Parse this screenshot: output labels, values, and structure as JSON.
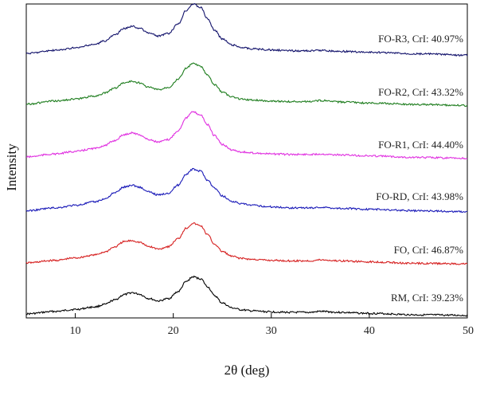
{
  "chart_data": {
    "type": "line",
    "xlabel": "2θ (deg)",
    "ylabel": "Intensity",
    "xlim": [
      5,
      50
    ],
    "xticks": [
      10,
      20,
      30,
      40,
      50
    ],
    "y_tick_labels": false,
    "series": [
      {
        "name": "RM, CrI: 39.23%",
        "color": "#000000",
        "x": [
          5,
          8,
          10,
          12,
          13,
          14,
          15,
          15.8,
          16.5,
          17.5,
          18.5,
          19.5,
          20.5,
          21.3,
          22,
          22.8,
          23.5,
          24.2,
          25,
          26,
          27,
          28,
          30,
          32,
          34,
          35,
          37,
          40,
          45,
          50
        ],
        "y": [
          0.05,
          0.1,
          0.14,
          0.19,
          0.24,
          0.33,
          0.44,
          0.48,
          0.45,
          0.36,
          0.31,
          0.36,
          0.5,
          0.7,
          0.8,
          0.76,
          0.6,
          0.42,
          0.27,
          0.17,
          0.13,
          0.11,
          0.09,
          0.08,
          0.08,
          0.1,
          0.08,
          0.06,
          0.03,
          0.02
        ]
      },
      {
        "name": "FO, CrI: 46.87%",
        "color": "#d62020",
        "x": [
          5,
          8,
          10,
          12,
          13,
          14,
          15,
          15.8,
          16.5,
          17.5,
          18.5,
          19.5,
          20.5,
          21.3,
          22,
          22.8,
          23.5,
          24.2,
          25,
          26,
          27,
          28,
          30,
          32,
          34,
          35,
          37,
          40,
          45,
          50
        ],
        "y": [
          0.05,
          0.1,
          0.15,
          0.21,
          0.27,
          0.37,
          0.48,
          0.5,
          0.47,
          0.38,
          0.33,
          0.38,
          0.54,
          0.75,
          0.85,
          0.8,
          0.62,
          0.43,
          0.28,
          0.18,
          0.14,
          0.12,
          0.1,
          0.09,
          0.09,
          0.11,
          0.09,
          0.07,
          0.04,
          0.03
        ]
      },
      {
        "name": "FO-RD, CrI: 43.98%",
        "color": "#1a1ab8",
        "x": [
          5,
          8,
          10,
          12,
          13,
          14,
          15,
          15.8,
          16.5,
          17.5,
          18.5,
          19.5,
          20.5,
          21.3,
          22,
          22.8,
          23.5,
          24.2,
          25,
          26,
          27,
          28,
          30,
          32,
          34,
          35,
          37,
          40,
          45,
          50
        ],
        "y": [
          0.04,
          0.1,
          0.15,
          0.22,
          0.28,
          0.4,
          0.52,
          0.56,
          0.52,
          0.42,
          0.36,
          0.4,
          0.56,
          0.78,
          0.88,
          0.84,
          0.66,
          0.5,
          0.34,
          0.23,
          0.18,
          0.15,
          0.12,
          0.1,
          0.1,
          0.11,
          0.09,
          0.07,
          0.04,
          0.02
        ]
      },
      {
        "name": "FO-R1, CrI: 44.40%",
        "color": "#e02fe0",
        "x": [
          5,
          8,
          10,
          12,
          13,
          14,
          15,
          15.8,
          16.5,
          17.5,
          18.5,
          19.5,
          20.5,
          21.3,
          22,
          22.8,
          23.5,
          24.2,
          25,
          26,
          27,
          28,
          30,
          32,
          34,
          35,
          37,
          40,
          45,
          50
        ],
        "y": [
          0.05,
          0.11,
          0.16,
          0.22,
          0.28,
          0.38,
          0.5,
          0.54,
          0.5,
          0.4,
          0.35,
          0.4,
          0.58,
          0.84,
          0.96,
          0.9,
          0.7,
          0.48,
          0.3,
          0.19,
          0.15,
          0.13,
          0.11,
          0.1,
          0.1,
          0.11,
          0.09,
          0.07,
          0.04,
          0.02
        ]
      },
      {
        "name": "FO-R2, CrI: 43.32%",
        "color": "#1e7d1e",
        "x": [
          5,
          8,
          10,
          12,
          13,
          14,
          15,
          15.8,
          16.5,
          17.5,
          18.5,
          19.5,
          20.5,
          21.3,
          22,
          22.8,
          23.5,
          24.2,
          25,
          26,
          27,
          28,
          30,
          32,
          34,
          35,
          37,
          40,
          45,
          50
        ],
        "y": [
          0.04,
          0.1,
          0.14,
          0.2,
          0.26,
          0.36,
          0.47,
          0.5,
          0.47,
          0.38,
          0.33,
          0.38,
          0.54,
          0.76,
          0.86,
          0.8,
          0.62,
          0.43,
          0.28,
          0.18,
          0.14,
          0.12,
          0.1,
          0.09,
          0.09,
          0.11,
          0.08,
          0.06,
          0.03,
          0.01
        ]
      },
      {
        "name": "FO-R3, CrI: 40.97%",
        "color": "#12126b",
        "x": [
          5,
          8,
          10,
          12,
          13,
          14,
          15,
          15.8,
          16.5,
          17.5,
          18.5,
          19.5,
          20.5,
          21.3,
          22,
          22.8,
          23.5,
          24.2,
          25,
          26,
          27,
          28,
          30,
          32,
          34,
          35,
          37,
          40,
          45,
          50
        ],
        "y": [
          0.05,
          0.11,
          0.16,
          0.23,
          0.3,
          0.42,
          0.55,
          0.6,
          0.56,
          0.46,
          0.4,
          0.45,
          0.64,
          0.92,
          1.05,
          0.98,
          0.75,
          0.52,
          0.34,
          0.22,
          0.17,
          0.14,
          0.12,
          0.1,
          0.1,
          0.11,
          0.09,
          0.07,
          0.04,
          0.01
        ]
      }
    ]
  }
}
